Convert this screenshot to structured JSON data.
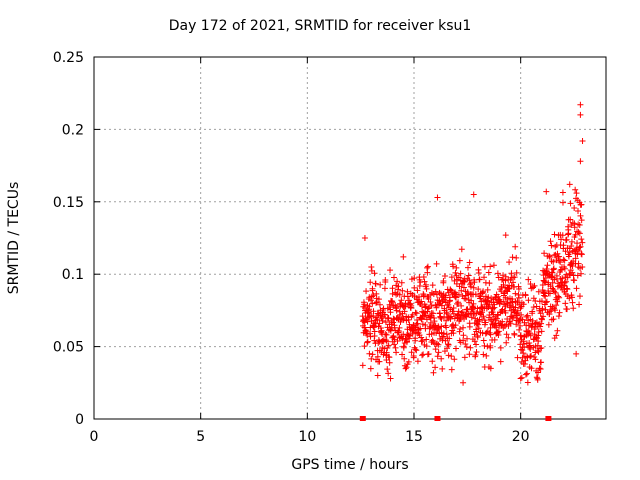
{
  "chart_data": {
    "type": "scatter",
    "title": "Day 172 of 2021, SRMTID for receiver ksu1",
    "xlabel": "GPS time / hours",
    "ylabel": "SRMTID / TECUs",
    "xlim": [
      0,
      24
    ],
    "ylim": [
      0,
      0.25
    ],
    "xticks": [
      0,
      5,
      10,
      15,
      20
    ],
    "xtick_labels": [
      "0",
      "5",
      "10",
      "15",
      "20"
    ],
    "yticks": [
      0,
      0.05,
      0.1,
      0.15,
      0.2,
      0.25
    ],
    "ytick_labels": [
      "0",
      "0.05",
      "0.1",
      "0.15",
      "0.2",
      "0.25"
    ],
    "grid": true,
    "marker": "+",
    "series_color": "#ff0000",
    "data_range_hours": [
      12.6,
      22.9
    ],
    "baseline_markers_x": [
      12.6,
      16.1,
      21.3
    ],
    "highlight_points": [
      {
        "x": 22.8,
        "y": 0.217
      },
      {
        "x": 22.8,
        "y": 0.21
      },
      {
        "x": 22.9,
        "y": 0.192
      },
      {
        "x": 22.8,
        "y": 0.178
      },
      {
        "x": 16.1,
        "y": 0.153
      },
      {
        "x": 17.8,
        "y": 0.155
      },
      {
        "x": 21.2,
        "y": 0.157
      },
      {
        "x": 22.3,
        "y": 0.162
      },
      {
        "x": 12.7,
        "y": 0.125
      },
      {
        "x": 13.0,
        "y": 0.105
      },
      {
        "x": 14.5,
        "y": 0.112
      },
      {
        "x": 19.3,
        "y": 0.127
      },
      {
        "x": 13.3,
        "y": 0.03
      },
      {
        "x": 13.9,
        "y": 0.028
      },
      {
        "x": 17.3,
        "y": 0.025
      },
      {
        "x": 20.0,
        "y": 0.028
      },
      {
        "x": 20.8,
        "y": 0.027
      },
      {
        "x": 22.6,
        "y": 0.045
      },
      {
        "x": 12.6,
        "y": 0.037
      },
      {
        "x": 18.6,
        "y": 0.035
      }
    ]
  }
}
